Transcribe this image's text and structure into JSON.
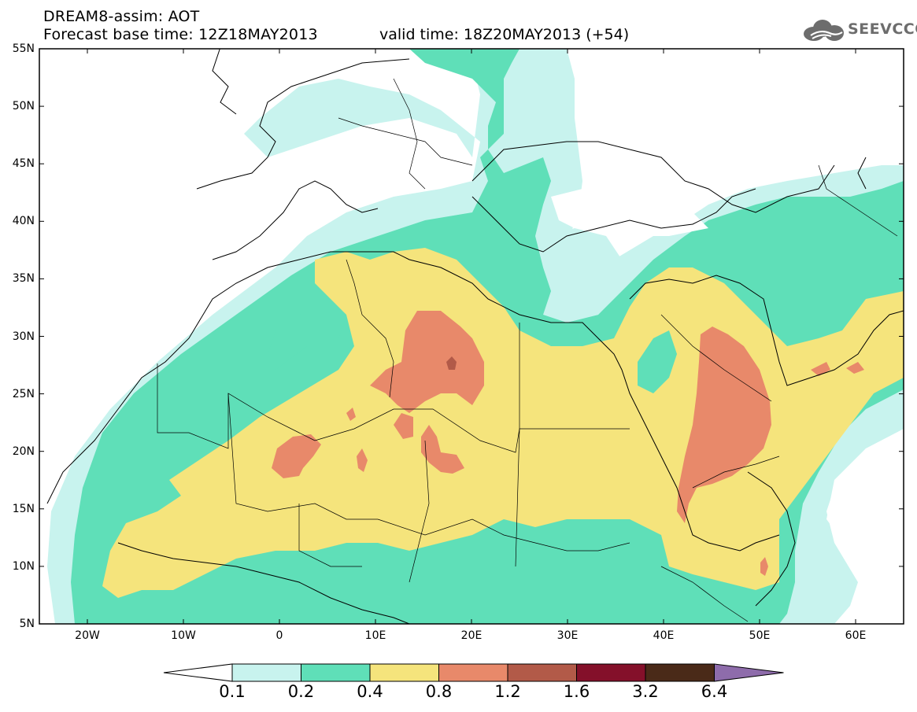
{
  "header": {
    "title_line1": "DREAM8-assim: AOT",
    "base_time": "Forecast base time: 12Z18MAY2013",
    "valid_time": "valid time: 18Z20MAY2013 (+54)"
  },
  "logo": {
    "text": "SEEVCCC",
    "icon": "cloud-icon"
  },
  "map": {
    "variable": "AOT",
    "lat_labels": [
      "55N",
      "50N",
      "45N",
      "40N",
      "35N",
      "30N",
      "25N",
      "20N",
      "15N",
      "10N",
      "5N"
    ],
    "lon_labels": [
      "20W",
      "10W",
      "0",
      "10E",
      "20E",
      "30E",
      "40E",
      "50E",
      "60E"
    ],
    "lat_range": [
      5,
      55
    ],
    "lon_range": [
      -25,
      65
    ]
  },
  "colorbar": {
    "labels": [
      "0.1",
      "0.2",
      "0.4",
      "0.8",
      "1.2",
      "1.6",
      "3.2",
      "6.4"
    ],
    "colors": [
      "#ffffff",
      "#c8f3ee",
      "#5fdfb8",
      "#f5e47c",
      "#e8896a",
      "#b25a48",
      "#84102a",
      "#4a2a18",
      "#8e6cab"
    ]
  }
}
